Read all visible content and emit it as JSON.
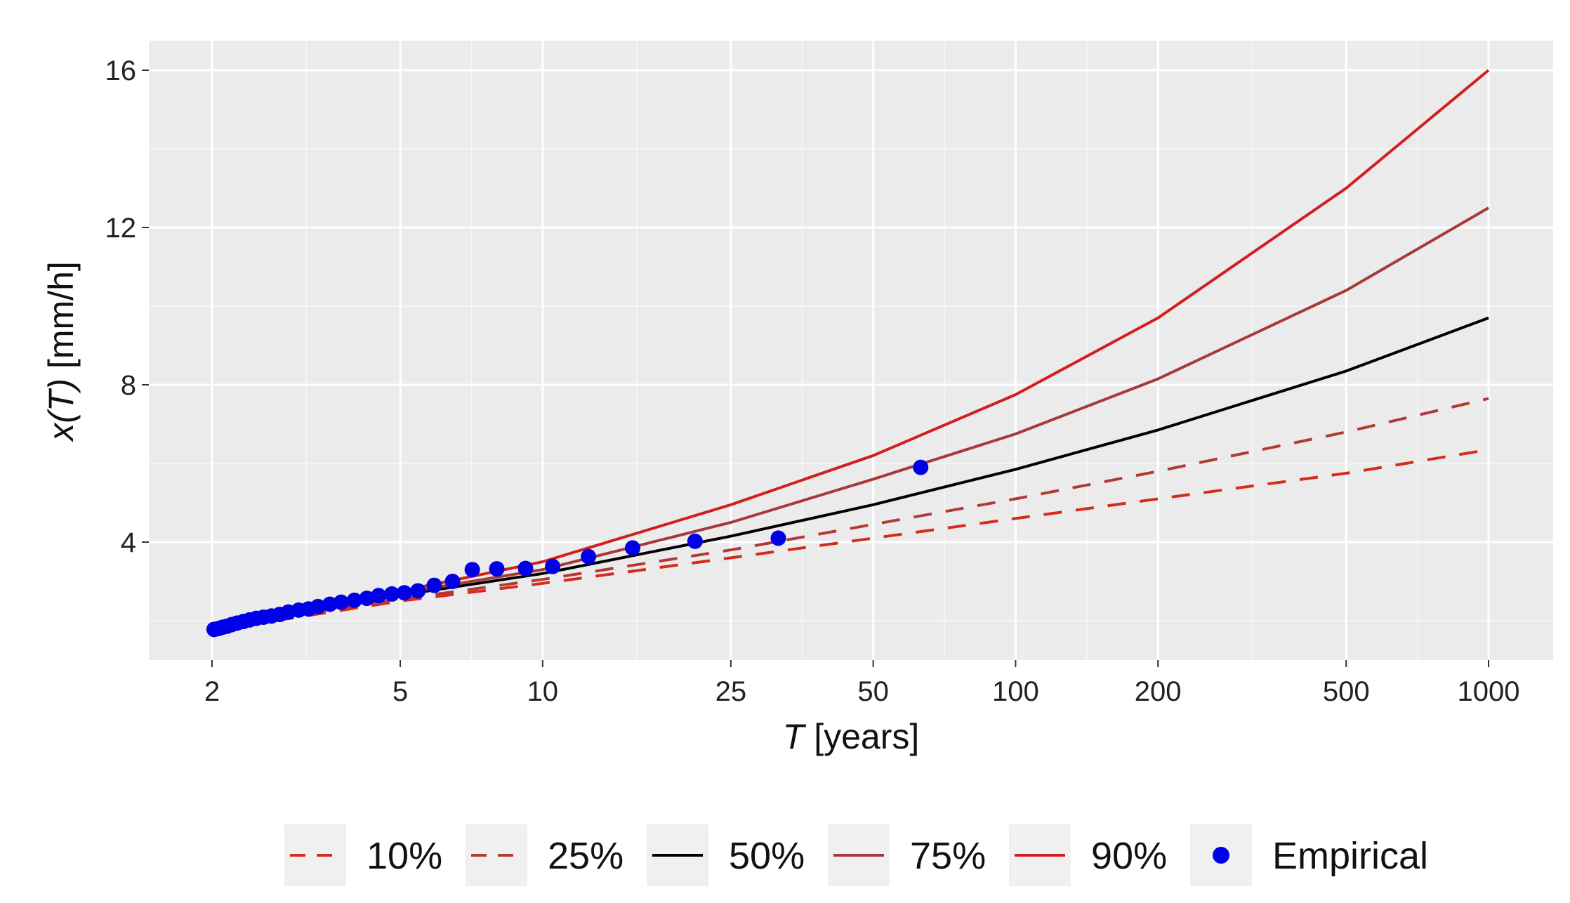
{
  "chart_data": {
    "type": "line",
    "title": "",
    "xscale": "log",
    "xlabel_italic": "T",
    "xlabel_rest": " [years]",
    "ylabel_italic_open": "x(",
    "ylabel_italic_T": "T",
    "ylabel_close": ")",
    "ylabel_rest": " [mm/h]",
    "xlim": [
      2,
      1000
    ],
    "ylim": [
      1.5,
      17
    ],
    "xticks": [
      2,
      5,
      10,
      25,
      50,
      100,
      200,
      500,
      1000
    ],
    "xtick_labels": [
      "2",
      "5",
      "10",
      "25",
      "50",
      "100",
      "200",
      "500",
      "1000"
    ],
    "yticks": [
      4,
      8,
      12,
      16
    ],
    "ytick_labels": [
      "4",
      "8",
      "12",
      "16"
    ],
    "grid": true,
    "legend_position": "bottom",
    "x": [
      2,
      5,
      10,
      25,
      50,
      100,
      200,
      500,
      1000
    ],
    "series": [
      {
        "name": "10%",
        "style": "dashed",
        "color": "#d62a1c",
        "values": [
          1.75,
          2.5,
          2.95,
          3.6,
          4.1,
          4.6,
          5.1,
          5.75,
          6.35
        ]
      },
      {
        "name": "25%",
        "style": "dashed",
        "color": "#b23a33",
        "values": [
          1.8,
          2.55,
          3.05,
          3.8,
          4.45,
          5.1,
          5.8,
          6.8,
          7.65
        ]
      },
      {
        "name": "50%",
        "style": "solid",
        "color": "#000000",
        "values": [
          1.8,
          2.65,
          3.2,
          4.15,
          4.95,
          5.85,
          6.85,
          8.35,
          9.7
        ]
      },
      {
        "name": "75%",
        "style": "solid",
        "color": "#a8393a",
        "values": [
          1.8,
          2.7,
          3.3,
          4.5,
          5.6,
          6.75,
          8.15,
          10.4,
          12.5
        ]
      },
      {
        "name": "90%",
        "style": "solid",
        "color": "#d21e1e",
        "values": [
          1.8,
          2.75,
          3.5,
          4.95,
          6.2,
          7.75,
          9.7,
          13.0,
          16.0
        ]
      }
    ],
    "empirical": {
      "name": "Empirical",
      "color": "#0000e6",
      "x": [
        2.02,
        2.06,
        2.1,
        2.15,
        2.2,
        2.26,
        2.33,
        2.4,
        2.48,
        2.57,
        2.67,
        2.78,
        2.9,
        3.05,
        3.2,
        3.35,
        3.55,
        3.75,
        4.0,
        4.25,
        4.5,
        4.8,
        5.1,
        5.45,
        5.9,
        6.45,
        7.1,
        8.0,
        9.2,
        10.5,
        12.5,
        15.5,
        21.0,
        31.5,
        63.0
      ],
      "y": [
        1.78,
        1.8,
        1.83,
        1.86,
        1.9,
        1.94,
        1.98,
        2.02,
        2.06,
        2.09,
        2.12,
        2.16,
        2.22,
        2.27,
        2.3,
        2.36,
        2.42,
        2.47,
        2.52,
        2.57,
        2.64,
        2.68,
        2.71,
        2.76,
        2.9,
        3.0,
        3.3,
        3.32,
        3.33,
        3.38,
        3.63,
        3.85,
        4.02,
        4.1,
        5.9
      ]
    }
  }
}
